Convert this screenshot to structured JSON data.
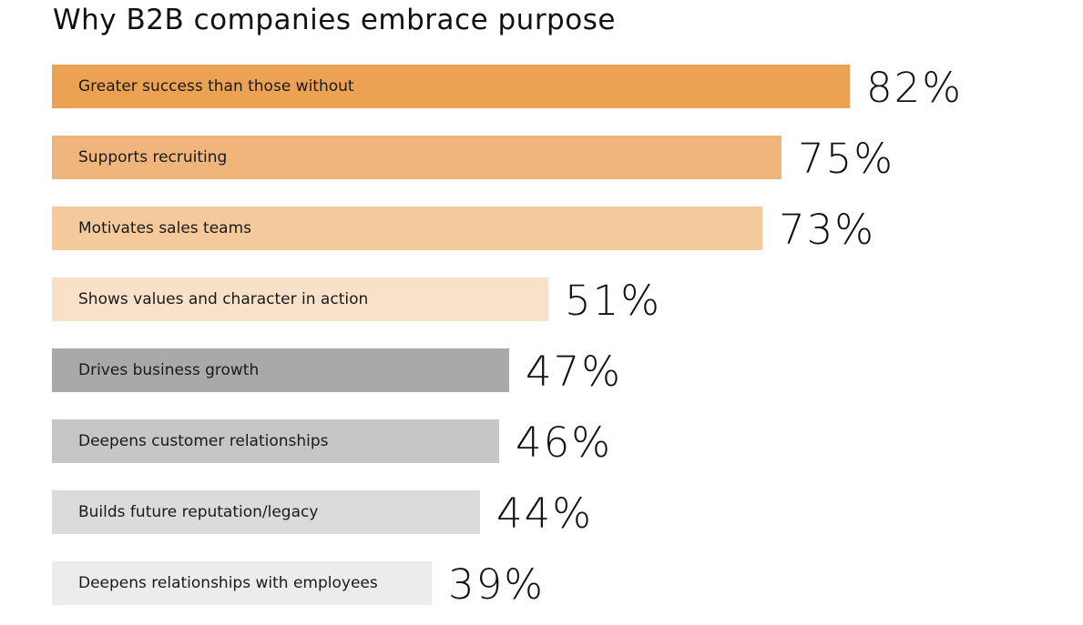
{
  "chart_data": {
    "type": "bar",
    "orientation": "horizontal",
    "title": "Why B2B companies embrace purpose",
    "xlabel": "",
    "ylabel": "",
    "xlim": [
      0,
      100
    ],
    "grid": false,
    "categories": [
      "Greater success than those without",
      "Supports recruiting",
      "Motivates sales teams",
      "Shows values and character in action",
      "Drives business growth",
      "Deepens customer relationships",
      "Builds future reputation/legacy",
      "Deepens relationships with employees"
    ],
    "values": [
      82,
      75,
      73,
      51,
      47,
      46,
      44,
      39
    ],
    "value_labels": [
      "82%",
      "75%",
      "73%",
      "51%",
      "47%",
      "46%",
      "44%",
      "39%"
    ],
    "colors": [
      "#EBA252",
      "#EFB57A",
      "#F4CA9C",
      "#F8E1C8",
      "#A9A9AB",
      "#C5C6C8",
      "#DBDBDD",
      "#ECECEE"
    ]
  }
}
